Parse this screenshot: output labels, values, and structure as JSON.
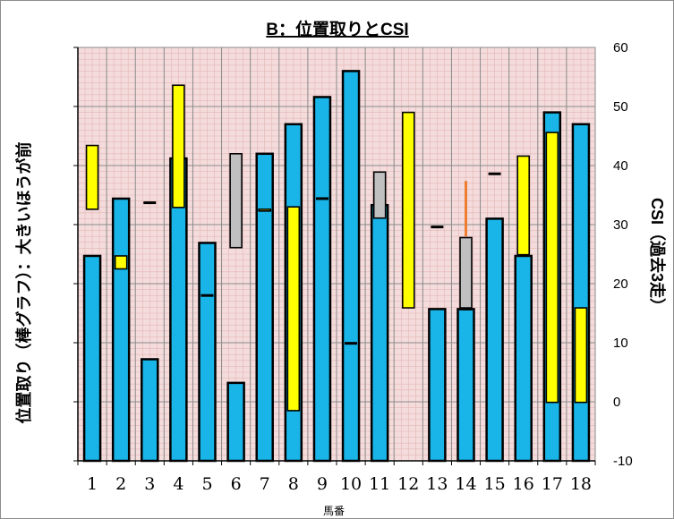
{
  "chart_data": {
    "type": "bar",
    "title": "B：位置取りとCSI",
    "xlabel": "馬番",
    "ylabel": "位置取り（棒グラフ）：大きいほうが前",
    "y2label": "CSI（過去3走）",
    "categories": [
      "1",
      "2",
      "3",
      "4",
      "5",
      "6",
      "7",
      "8",
      "9",
      "10",
      "11",
      "12",
      "13",
      "14",
      "15",
      "16",
      "17",
      "18"
    ],
    "y2lim": [
      -10,
      60
    ],
    "y2ticks": [
      "60",
      "50",
      "40",
      "30",
      "20",
      "10",
      "0",
      "-10"
    ],
    "grid": true,
    "series": [
      {
        "kind": "bar",
        "axis": "secondary",
        "color": "#19b5e8",
        "values": [
          24.7,
          34.4,
          7.2,
          41.2,
          26.9,
          3.2,
          42.0,
          47.0,
          51.6,
          56.0,
          33.3,
          null,
          15.7,
          15.7,
          31.0,
          24.7,
          49.0,
          47.0
        ]
      },
      {
        "kind": "range",
        "axis": "secondary",
        "fill": "#ffff00",
        "values": [
          [
            32.6,
            43.4
          ],
          [
            22.5,
            24.7
          ],
          null,
          [
            32.9,
            53.6
          ],
          null,
          null,
          [
            32.3,
            32.6
          ],
          [
            -1.5,
            33.0
          ],
          null,
          null,
          null,
          [
            15.9,
            49.0
          ],
          null,
          null,
          null,
          [
            24.9,
            41.6
          ],
          [
            -0.1,
            45.6
          ],
          [
            -0.1,
            15.9
          ]
        ]
      },
      {
        "kind": "range",
        "axis": "secondary",
        "fill": "#c0c0c0",
        "values": [
          null,
          null,
          null,
          null,
          null,
          [
            26.1,
            42.0
          ],
          null,
          null,
          null,
          null,
          [
            31.1,
            38.9
          ],
          null,
          null,
          [
            15.9,
            27.8
          ],
          null,
          null,
          null,
          null
        ]
      },
      {
        "kind": "marker",
        "axis": "secondary",
        "values": [
          null,
          null,
          33.7,
          null,
          18.0,
          null,
          null,
          null,
          34.4,
          9.9,
          null,
          null,
          29.6,
          15.7,
          38.6,
          null,
          null,
          null
        ]
      },
      {
        "kind": "whisker",
        "axis": "secondary",
        "color": "#ed7d31",
        "values": [
          null,
          null,
          null,
          null,
          null,
          null,
          null,
          null,
          null,
          null,
          null,
          null,
          null,
          [
            28.0,
            37.4
          ],
          null,
          null,
          null,
          null
        ]
      }
    ]
  }
}
